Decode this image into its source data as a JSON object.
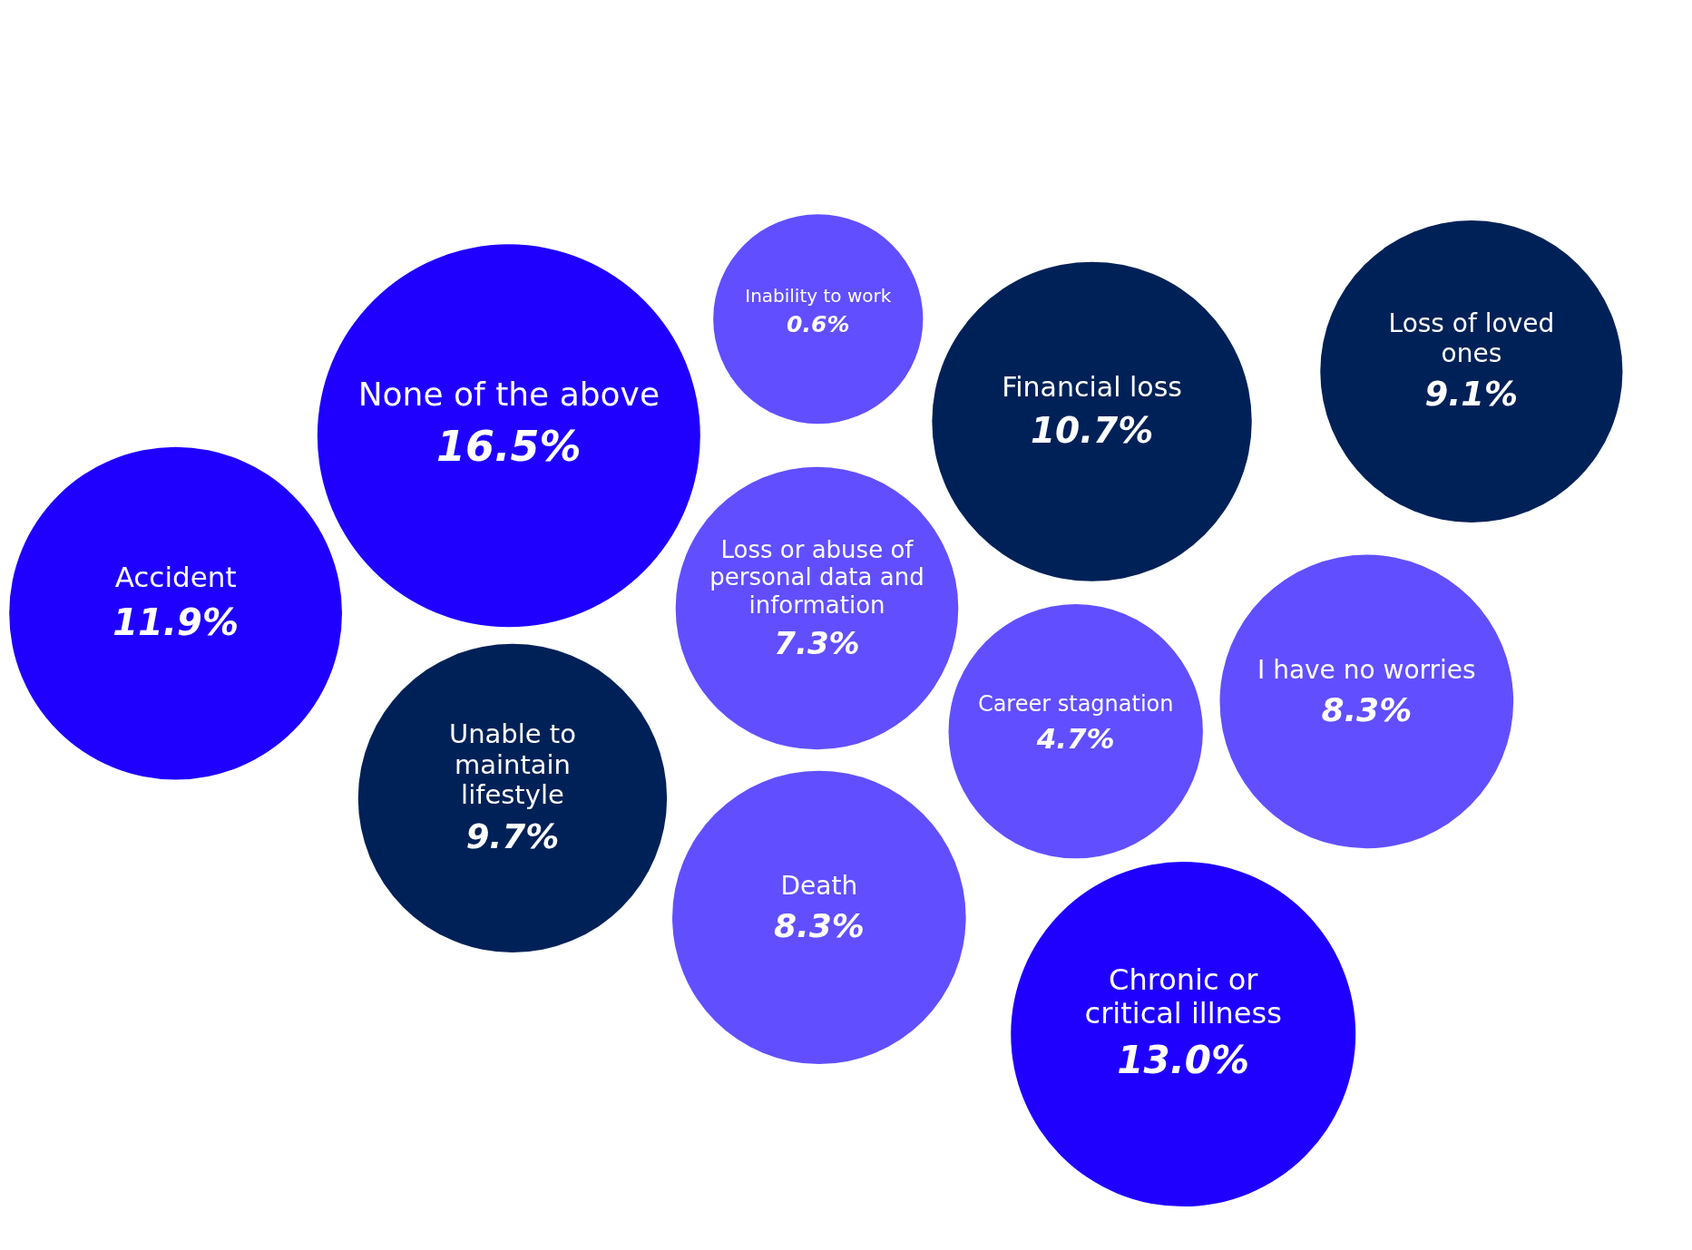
{
  "chart_data": {
    "type": "other",
    "categories": [
      "Loss or abuse of personal data and information",
      "Career stagnation",
      "None of the above",
      "Financial loss",
      "Unable to maintain lifestyle",
      "Death",
      "Inability to work",
      "I have no worries",
      "Accident",
      "Chronic or critical illness",
      "Loss of loved ones"
    ],
    "values": [
      7.3,
      4.7,
      16.5,
      10.7,
      9.7,
      8.3,
      0.6,
      8.3,
      11.9,
      13.0,
      9.1
    ],
    "value_labels": [
      "7.3%",
      "4.7%",
      "16.5%",
      "10.7%",
      "9.7%",
      "8.3%",
      "0.6%",
      "8.3%",
      "11.9%",
      "13.0%",
      "9.1%"
    ],
    "colors": [
      "#614fff",
      "#614fff",
      "#1f00ff",
      "#002157",
      "#002157",
      "#614fff",
      "#614fff",
      "#614fff",
      "#1f00ff",
      "#1f00ff",
      "#002157"
    ]
  }
}
